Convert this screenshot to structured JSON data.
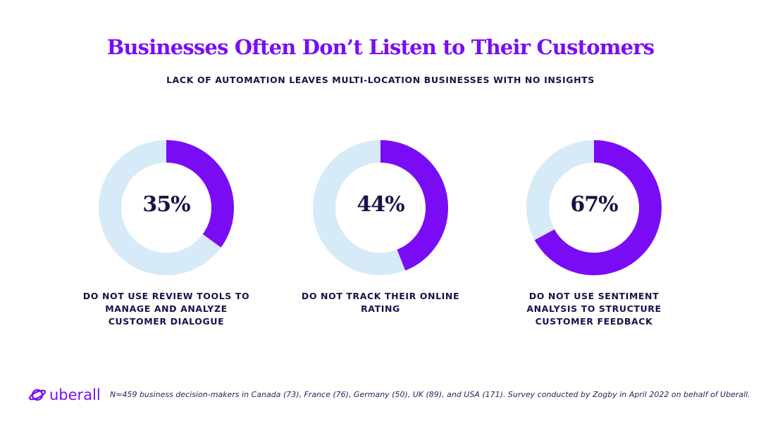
{
  "title": "Businesses Often Don’t Listen to Their Customers",
  "subtitle": "LACK OF AUTOMATION LEAVES MULTI-LOCATION BUSINESSES WITH NO INSIGHTS",
  "colors": {
    "accent": "#7a0cf5",
    "track": "#d6eaf7",
    "text": "#1b1148"
  },
  "chart_data": [
    {
      "type": "pie",
      "variant": "donut",
      "values": [
        35,
        65
      ],
      "label": "35%",
      "caption": "DO NOT USE REVIEW TOOLS TO MANAGE AND ANALYZE CUSTOMER DIALOGUE"
    },
    {
      "type": "pie",
      "variant": "donut",
      "values": [
        44,
        56
      ],
      "label": "44%",
      "caption": "DO NOT TRACK THEIR ONLINE RATING"
    },
    {
      "type": "pie",
      "variant": "donut",
      "values": [
        67,
        33
      ],
      "label": "67%",
      "caption": "DO NOT USE SENTIMENT ANALYSIS TO STRUCTURE CUSTOMER FEEDBACK"
    }
  ],
  "footer": {
    "logo": "uberall",
    "note": "N=459 business decision-makers in Canada (73), France (76), Germany (50), UK (89), and USA (171). Survey conducted by Zogby in April 2022 on behalf of Uberall."
  }
}
